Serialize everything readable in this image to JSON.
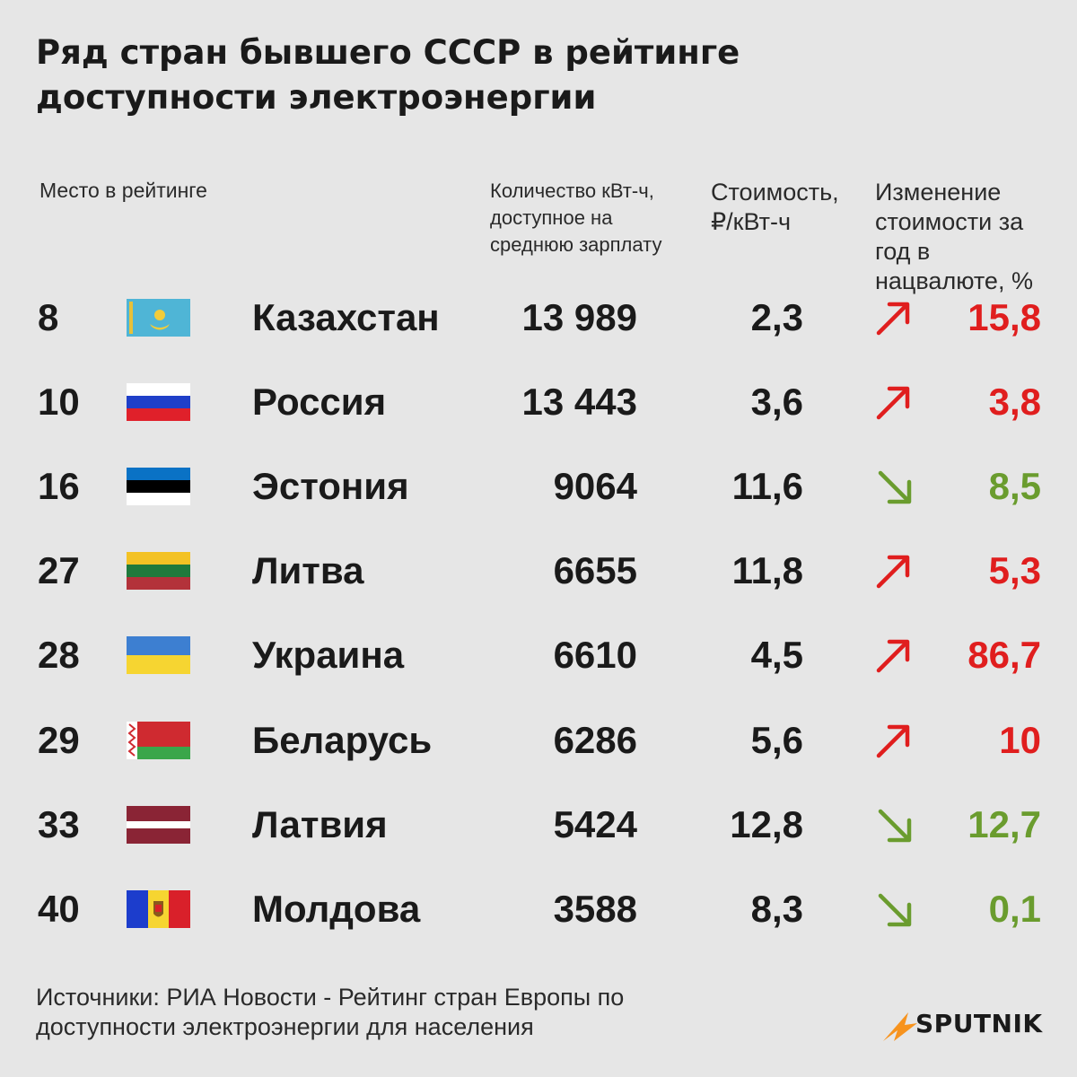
{
  "title": {
    "line1": "Ряд стран бывшего СССР в рейтинге",
    "line2": "доступности электроэнергии"
  },
  "headers": {
    "rank": "Место в рейтинге",
    "kwh": [
      "Количество  кВт-ч,",
      "доступное на",
      "среднюю зарплату"
    ],
    "cost": [
      "Стоимость,",
      "₽/кВт-ч"
    ],
    "change": [
      "Изменение",
      "стоимости за",
      "год в",
      "нацвалюте, %"
    ]
  },
  "chart_data": {
    "type": "table",
    "columns": [
      "Место в рейтинге",
      "",
      "Количество  кВт-ч, доступное на среднюю зарплату",
      "Стоимость, ₽/кВт-ч",
      "Изменение стоимости за год в нацвалюте, %"
    ],
    "rows": [
      {
        "rank": "8",
        "country": "Казахстан",
        "kwh": "13 989",
        "cost": "2,3",
        "direction": "up",
        "change": "15,8",
        "flag": "kazakhstan-flag-icon"
      },
      {
        "rank": "10",
        "country": "Россия",
        "kwh": "13 443",
        "cost": "3,6",
        "direction": "up",
        "change": "3,8",
        "flag": "russia-flag-icon"
      },
      {
        "rank": "16",
        "country": "Эстония",
        "kwh": "9064",
        "cost": "11,6",
        "direction": "down",
        "change": "8,5",
        "flag": "estonia-flag-icon"
      },
      {
        "rank": "27",
        "country": "Литва",
        "kwh": "6655",
        "cost": "11,8",
        "direction": "up",
        "change": "5,3",
        "flag": "lithuania-flag-icon"
      },
      {
        "rank": "28",
        "country": "Украина",
        "kwh": "6610",
        "cost": "4,5",
        "direction": "up",
        "change": "86,7",
        "flag": "ukraine-flag-icon"
      },
      {
        "rank": "29",
        "country": "Беларусь",
        "kwh": "6286",
        "cost": "5,6",
        "direction": "up",
        "change": "10",
        "flag": "belarus-flag-icon"
      },
      {
        "rank": "33",
        "country": "Латвия",
        "kwh": "5424",
        "cost": "12,8",
        "direction": "down",
        "change": "12,7",
        "flag": "latvia-flag-icon"
      },
      {
        "rank": "40",
        "country": "Молдова",
        "kwh": "3588",
        "cost": "8,3",
        "direction": "down",
        "change": "0,1",
        "flag": "moldova-flag-icon"
      }
    ]
  },
  "colors": {
    "up": "#e01e1e",
    "down": "#6a9c2e",
    "accent": "#f7931e"
  },
  "source": {
    "line1": "Источники: РИА Новости - Рейтинг стран Европы по",
    "line2": "доступности электроэнергии для населения"
  },
  "logo": "SPUTNIK"
}
